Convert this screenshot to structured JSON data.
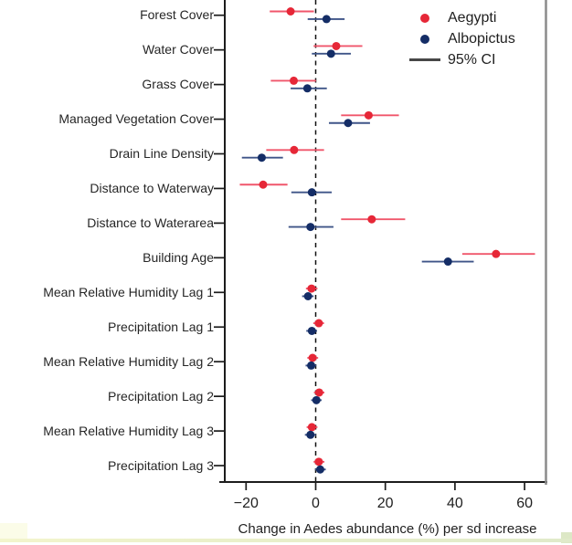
{
  "chart_data": {
    "type": "scatter",
    "subtype": "forest-plot-with-error-bars",
    "orientation": "horizontal",
    "title": "",
    "xlabel": "Change in Aedes abundance (%) per sd increase",
    "ylabel": "",
    "categories": [
      "Forest Cover",
      "Water Cover",
      "Grass Cover",
      "Managed Vegetation Cover",
      "Drain Line Density",
      "Distance to Waterway",
      "Distance to Waterarea",
      "Building Age",
      "Mean Relative Humidity Lag 1",
      "Precipitation Lag 1",
      "Mean Relative Humidity Lag 2",
      "Precipitation Lag 2",
      "Mean Relative Humidity Lag 3",
      "Precipitation Lag 3"
    ],
    "series": [
      {
        "name": "Aegypti",
        "color": "#e62737",
        "ci_color": "#f0566b",
        "points": [
          {
            "est": -7.2,
            "lo": -13.2,
            "hi": -0.5
          },
          {
            "est": 5.9,
            "lo": -0.6,
            "hi": 13.4
          },
          {
            "est": -6.3,
            "lo": -12.9,
            "hi": 0.1
          },
          {
            "est": 15.2,
            "lo": 7.3,
            "hi": 23.9
          },
          {
            "est": -6.2,
            "lo": -14.2,
            "hi": 2.4
          },
          {
            "est": -15.1,
            "lo": -21.8,
            "hi": -8.1
          },
          {
            "est": 16.1,
            "lo": 7.3,
            "hi": 25.7
          },
          {
            "est": 51.8,
            "lo": 42.1,
            "hi": 63.0
          },
          {
            "est": -1.2,
            "lo": -2.8,
            "hi": 0.5
          },
          {
            "est": 0.9,
            "lo": -0.7,
            "hi": 2.4
          },
          {
            "est": -0.9,
            "lo": -2.4,
            "hi": 0.7
          },
          {
            "est": 1.0,
            "lo": -0.5,
            "hi": 2.5
          },
          {
            "est": -1.1,
            "lo": -2.6,
            "hi": 0.5
          },
          {
            "est": 0.9,
            "lo": -0.6,
            "hi": 2.5
          }
        ]
      },
      {
        "name": "Albopictus",
        "color": "#142d66",
        "ci_color": "#3f5588",
        "points": [
          {
            "est": 3.1,
            "lo": -2.3,
            "hi": 8.3
          },
          {
            "est": 4.4,
            "lo": -1.1,
            "hi": 10.1
          },
          {
            "est": -2.4,
            "lo": -7.2,
            "hi": 3.2
          },
          {
            "est": 9.3,
            "lo": 3.8,
            "hi": 15.6
          },
          {
            "est": -15.5,
            "lo": -21.2,
            "hi": -9.4
          },
          {
            "est": -1.1,
            "lo": -7.0,
            "hi": 4.6
          },
          {
            "est": -1.5,
            "lo": -7.8,
            "hi": 5.1
          },
          {
            "est": 38.0,
            "lo": 30.5,
            "hi": 45.4
          },
          {
            "est": -2.2,
            "lo": -3.9,
            "hi": -0.6
          },
          {
            "est": -1.1,
            "lo": -2.7,
            "hi": 0.4
          },
          {
            "est": -1.3,
            "lo": -2.9,
            "hi": 0.2
          },
          {
            "est": 0.2,
            "lo": -1.3,
            "hi": 1.7
          },
          {
            "est": -1.5,
            "lo": -3.1,
            "hi": 0.1
          },
          {
            "est": 1.3,
            "lo": -0.2,
            "hi": 2.9
          }
        ]
      }
    ],
    "ci_level_label": "95% CI",
    "x_ticks": [
      -20,
      0,
      20,
      40,
      60
    ],
    "x_tick_labels": [
      "−20",
      "0",
      "20",
      "40",
      "60"
    ],
    "xlim": [
      -26,
      66
    ],
    "reference_line_x": 0,
    "legend_position": "top-right",
    "grid": false,
    "axis_color": "#1c1c1c",
    "reference_line_color": "#111111",
    "figure_right_border_color": "#8c8c8c",
    "ci_legend_line_color": "#474747"
  }
}
